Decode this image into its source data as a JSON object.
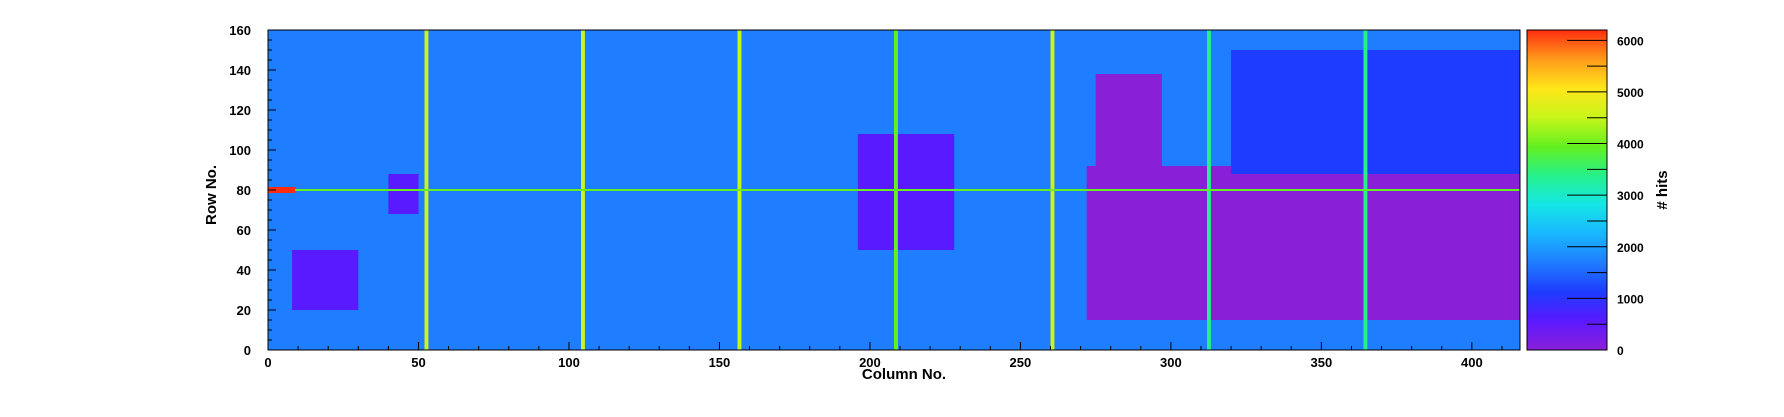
{
  "chart_data": {
    "type": "heatmap",
    "title": "",
    "xlabel": "Column No.",
    "ylabel": "Row No.",
    "zlabel": "# hits",
    "xlim": [
      0,
      416
    ],
    "ylim": [
      0,
      160
    ],
    "zlim": [
      0,
      6200
    ],
    "x_ticks": [
      0,
      50,
      100,
      150,
      200,
      250,
      300,
      350,
      400
    ],
    "y_ticks": [
      0,
      20,
      40,
      60,
      80,
      100,
      120,
      140,
      160
    ],
    "z_ticks": [
      0,
      1000,
      2000,
      3000,
      4000,
      5000,
      6000
    ],
    "x_tick_labels": [
      "0",
      "50",
      "100",
      "150",
      "200",
      "250",
      "300",
      "350",
      "400"
    ],
    "y_tick_labels": [
      "0",
      "20",
      "40",
      "60",
      "80",
      "100",
      "120",
      "140",
      "160"
    ],
    "z_tick_labels": [
      "0",
      "1000",
      "2000",
      "3000",
      "4000",
      "5000",
      "6000"
    ],
    "palette": [
      "#8a1fd8",
      "#5a1aff",
      "#1e3cff",
      "#1f7dff",
      "#19b7ff",
      "#16e6e6",
      "#25f08a",
      "#64f020",
      "#c8f51a",
      "#ffe61a",
      "#ff9a1a",
      "#ff2d10"
    ],
    "background_hits": 2000,
    "regions": [
      {
        "x": [
          272,
          416
        ],
        "y": [
          15,
          92
        ],
        "hits": 300
      },
      {
        "x": [
          275,
          297
        ],
        "y": [
          20,
          138
        ],
        "hits": 150
      },
      {
        "x": [
          196,
          228
        ],
        "y": [
          50,
          108
        ],
        "hits": 850
      },
      {
        "x": [
          8,
          30
        ],
        "y": [
          20,
          50
        ],
        "hits": 1000
      },
      {
        "x": [
          40,
          50
        ],
        "y": [
          68,
          88
        ],
        "hits": 600
      },
      {
        "x": [
          320,
          416
        ],
        "y": [
          88,
          150
        ],
        "hits": 1100
      }
    ],
    "hot_columns": [
      {
        "column": 52,
        "hits": 4500
      },
      {
        "column": 104,
        "hits": 4500
      },
      {
        "column": 156,
        "hits": 4600
      },
      {
        "column": 208,
        "hits": 4100
      },
      {
        "column": 260,
        "hits": 4300
      },
      {
        "column": 312,
        "hits": 3400
      },
      {
        "column": 364,
        "hits": 3600
      }
    ],
    "hot_rows": [
      {
        "row": 80,
        "hits": 3700
      }
    ],
    "hot_spots": [
      {
        "column": 3,
        "row": 80,
        "hits": 6000
      }
    ]
  }
}
